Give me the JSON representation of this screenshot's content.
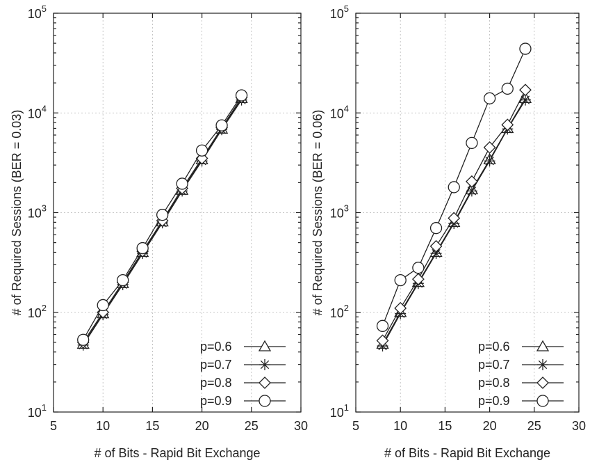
{
  "chart_data": [
    {
      "type": "line",
      "title": "",
      "xlabel": "# of Bits - Rapid Bit Exchange",
      "ylabel": "# of Required Sessions (BER = 0.03)",
      "xlim": [
        5,
        30
      ],
      "ylim": [
        10,
        100000
      ],
      "yscale": "log",
      "grid": true,
      "legend_position": "bottom-right",
      "x_ticks": [
        5,
        10,
        15,
        20,
        25,
        30
      ],
      "x_tick_labels": [
        "5",
        "10",
        "15",
        "20",
        "25",
        "30"
      ],
      "y_ticks": [
        10,
        100,
        1000,
        10000,
        100000
      ],
      "y_tick_labels": [
        {
          "base": "10",
          "exp": "1"
        },
        {
          "base": "10",
          "exp": "2"
        },
        {
          "base": "10",
          "exp": "3"
        },
        {
          "base": "10",
          "exp": "4"
        },
        {
          "base": "10",
          "exp": "5"
        }
      ],
      "x": [
        8,
        10,
        12,
        14,
        16,
        18,
        20,
        22,
        24
      ],
      "series": [
        {
          "name": "p=0.6",
          "marker": "triangle",
          "values": [
            48,
            97,
            195,
            400,
            810,
            1680,
            3400,
            6900,
            14000
          ]
        },
        {
          "name": "p=0.7",
          "marker": "star",
          "values": [
            47,
            95,
            190,
            390,
            790,
            1650,
            3300,
            6800,
            13500
          ]
        },
        {
          "name": "p=0.8",
          "marker": "diamond",
          "values": [
            50,
            100,
            200,
            410,
            830,
            1750,
            3500,
            7100,
            14300
          ]
        },
        {
          "name": "p=0.9",
          "marker": "circle",
          "values": [
            53,
            118,
            210,
            440,
            950,
            1950,
            4200,
            7500,
            15000
          ]
        }
      ]
    },
    {
      "type": "line",
      "title": "",
      "xlabel": "# of Bits - Rapid Bit Exchange",
      "ylabel": "# of Required Sessions (BER = 0.06)",
      "xlim": [
        5,
        30
      ],
      "ylim": [
        10,
        100000
      ],
      "yscale": "log",
      "grid": true,
      "legend_position": "bottom-right",
      "x_ticks": [
        5,
        10,
        15,
        20,
        25,
        30
      ],
      "x_tick_labels": [
        "5",
        "10",
        "15",
        "20",
        "25",
        "30"
      ],
      "y_ticks": [
        10,
        100,
        1000,
        10000,
        100000
      ],
      "y_tick_labels": [
        {
          "base": "10",
          "exp": "1"
        },
        {
          "base": "10",
          "exp": "2"
        },
        {
          "base": "10",
          "exp": "3"
        },
        {
          "base": "10",
          "exp": "4"
        },
        {
          "base": "10",
          "exp": "5"
        }
      ],
      "x": [
        8,
        10,
        12,
        14,
        16,
        18,
        20,
        22,
        24
      ],
      "series": [
        {
          "name": "p=0.6",
          "marker": "triangle",
          "values": [
            48,
            100,
            200,
            400,
            800,
            1700,
            3400,
            7000,
            14000
          ]
        },
        {
          "name": "p=0.7",
          "marker": "star",
          "values": [
            46,
            97,
            195,
            390,
            780,
            1650,
            3300,
            6900,
            13500
          ]
        },
        {
          "name": "p=0.8",
          "marker": "diamond",
          "values": [
            52,
            110,
            215,
            460,
            880,
            2050,
            4500,
            7600,
            17000
          ]
        },
        {
          "name": "p=0.9",
          "marker": "circle",
          "values": [
            73,
            210,
            280,
            700,
            1800,
            5000,
            14000,
            17500,
            44000
          ]
        }
      ]
    }
  ]
}
